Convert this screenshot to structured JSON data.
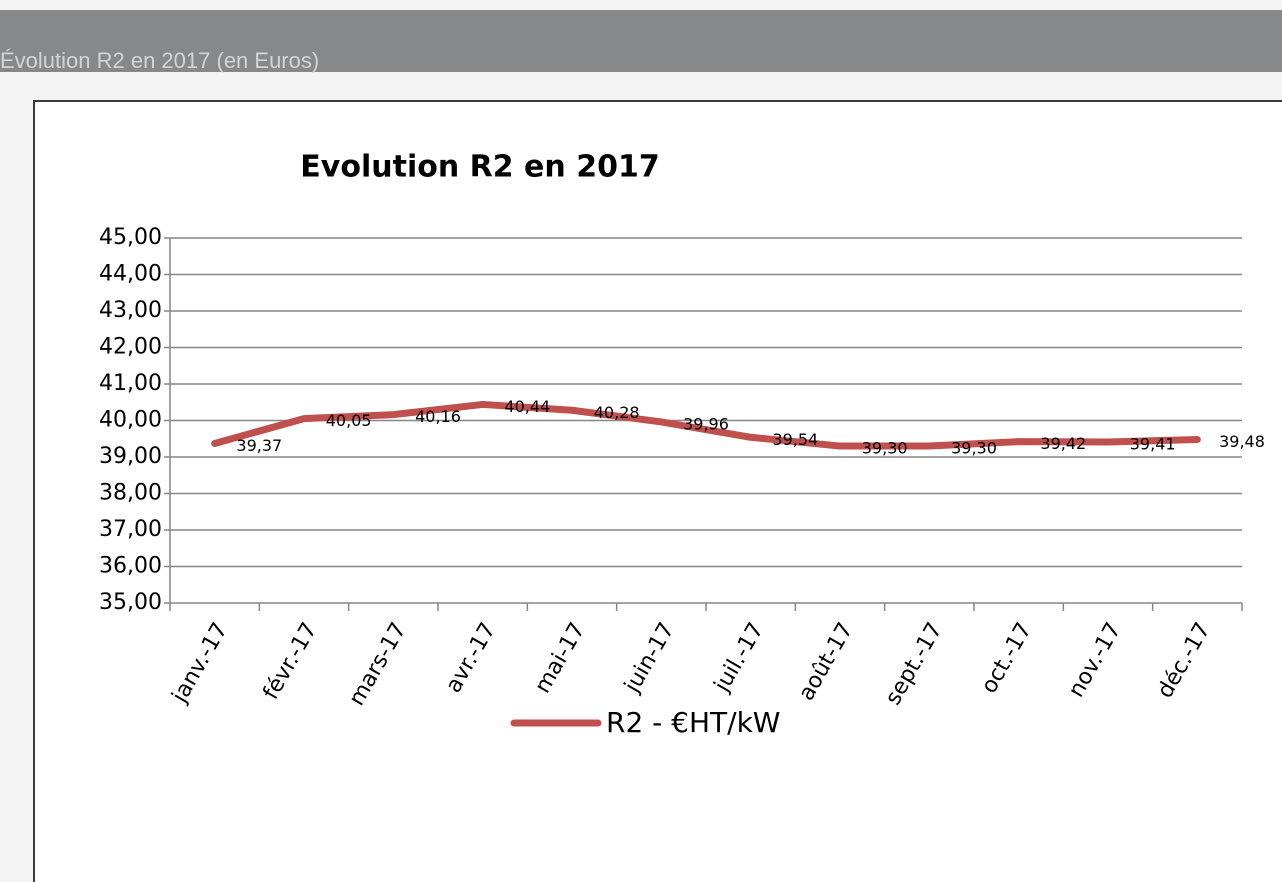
{
  "header": {
    "title": "Évolution R2 en 2017 (en Euros)"
  },
  "chart_data": {
    "type": "line",
    "title": "Evolution R2 en 2017",
    "categories": [
      "janv.-17",
      "févr.-17",
      "mars-17",
      "avr.-17",
      "mai-17",
      "juin-17",
      "juil.-17",
      "août-17",
      "sept.-17",
      "oct.-17",
      "nov.-17",
      "déc.-17"
    ],
    "series": [
      {
        "name": "R2 - €HT/kW",
        "color": "#c0504d",
        "values": [
          39.37,
          40.05,
          40.16,
          40.44,
          40.28,
          39.96,
          39.54,
          39.3,
          39.3,
          39.42,
          39.41,
          39.48
        ],
        "value_labels": [
          "39,37",
          "40,05",
          "40,16",
          "40,44",
          "40,28",
          "39,96",
          "39,54",
          "39,30",
          "39,30",
          "39,42",
          "39,41",
          "39,48"
        ]
      }
    ],
    "ylim": [
      35,
      45
    ],
    "yticks": [
      {
        "value": 35,
        "label": "35,00"
      },
      {
        "value": 36,
        "label": "36,00"
      },
      {
        "value": 37,
        "label": "37,00"
      },
      {
        "value": 38,
        "label": "38,00"
      },
      {
        "value": 39,
        "label": "39,00"
      },
      {
        "value": 40,
        "label": "40,00"
      },
      {
        "value": 41,
        "label": "41,00"
      },
      {
        "value": 42,
        "label": "42,00"
      },
      {
        "value": 43,
        "label": "43,00"
      },
      {
        "value": 44,
        "label": "44,00"
      },
      {
        "value": 45,
        "label": "45,00"
      }
    ],
    "grid": true,
    "legend": "bottom"
  }
}
